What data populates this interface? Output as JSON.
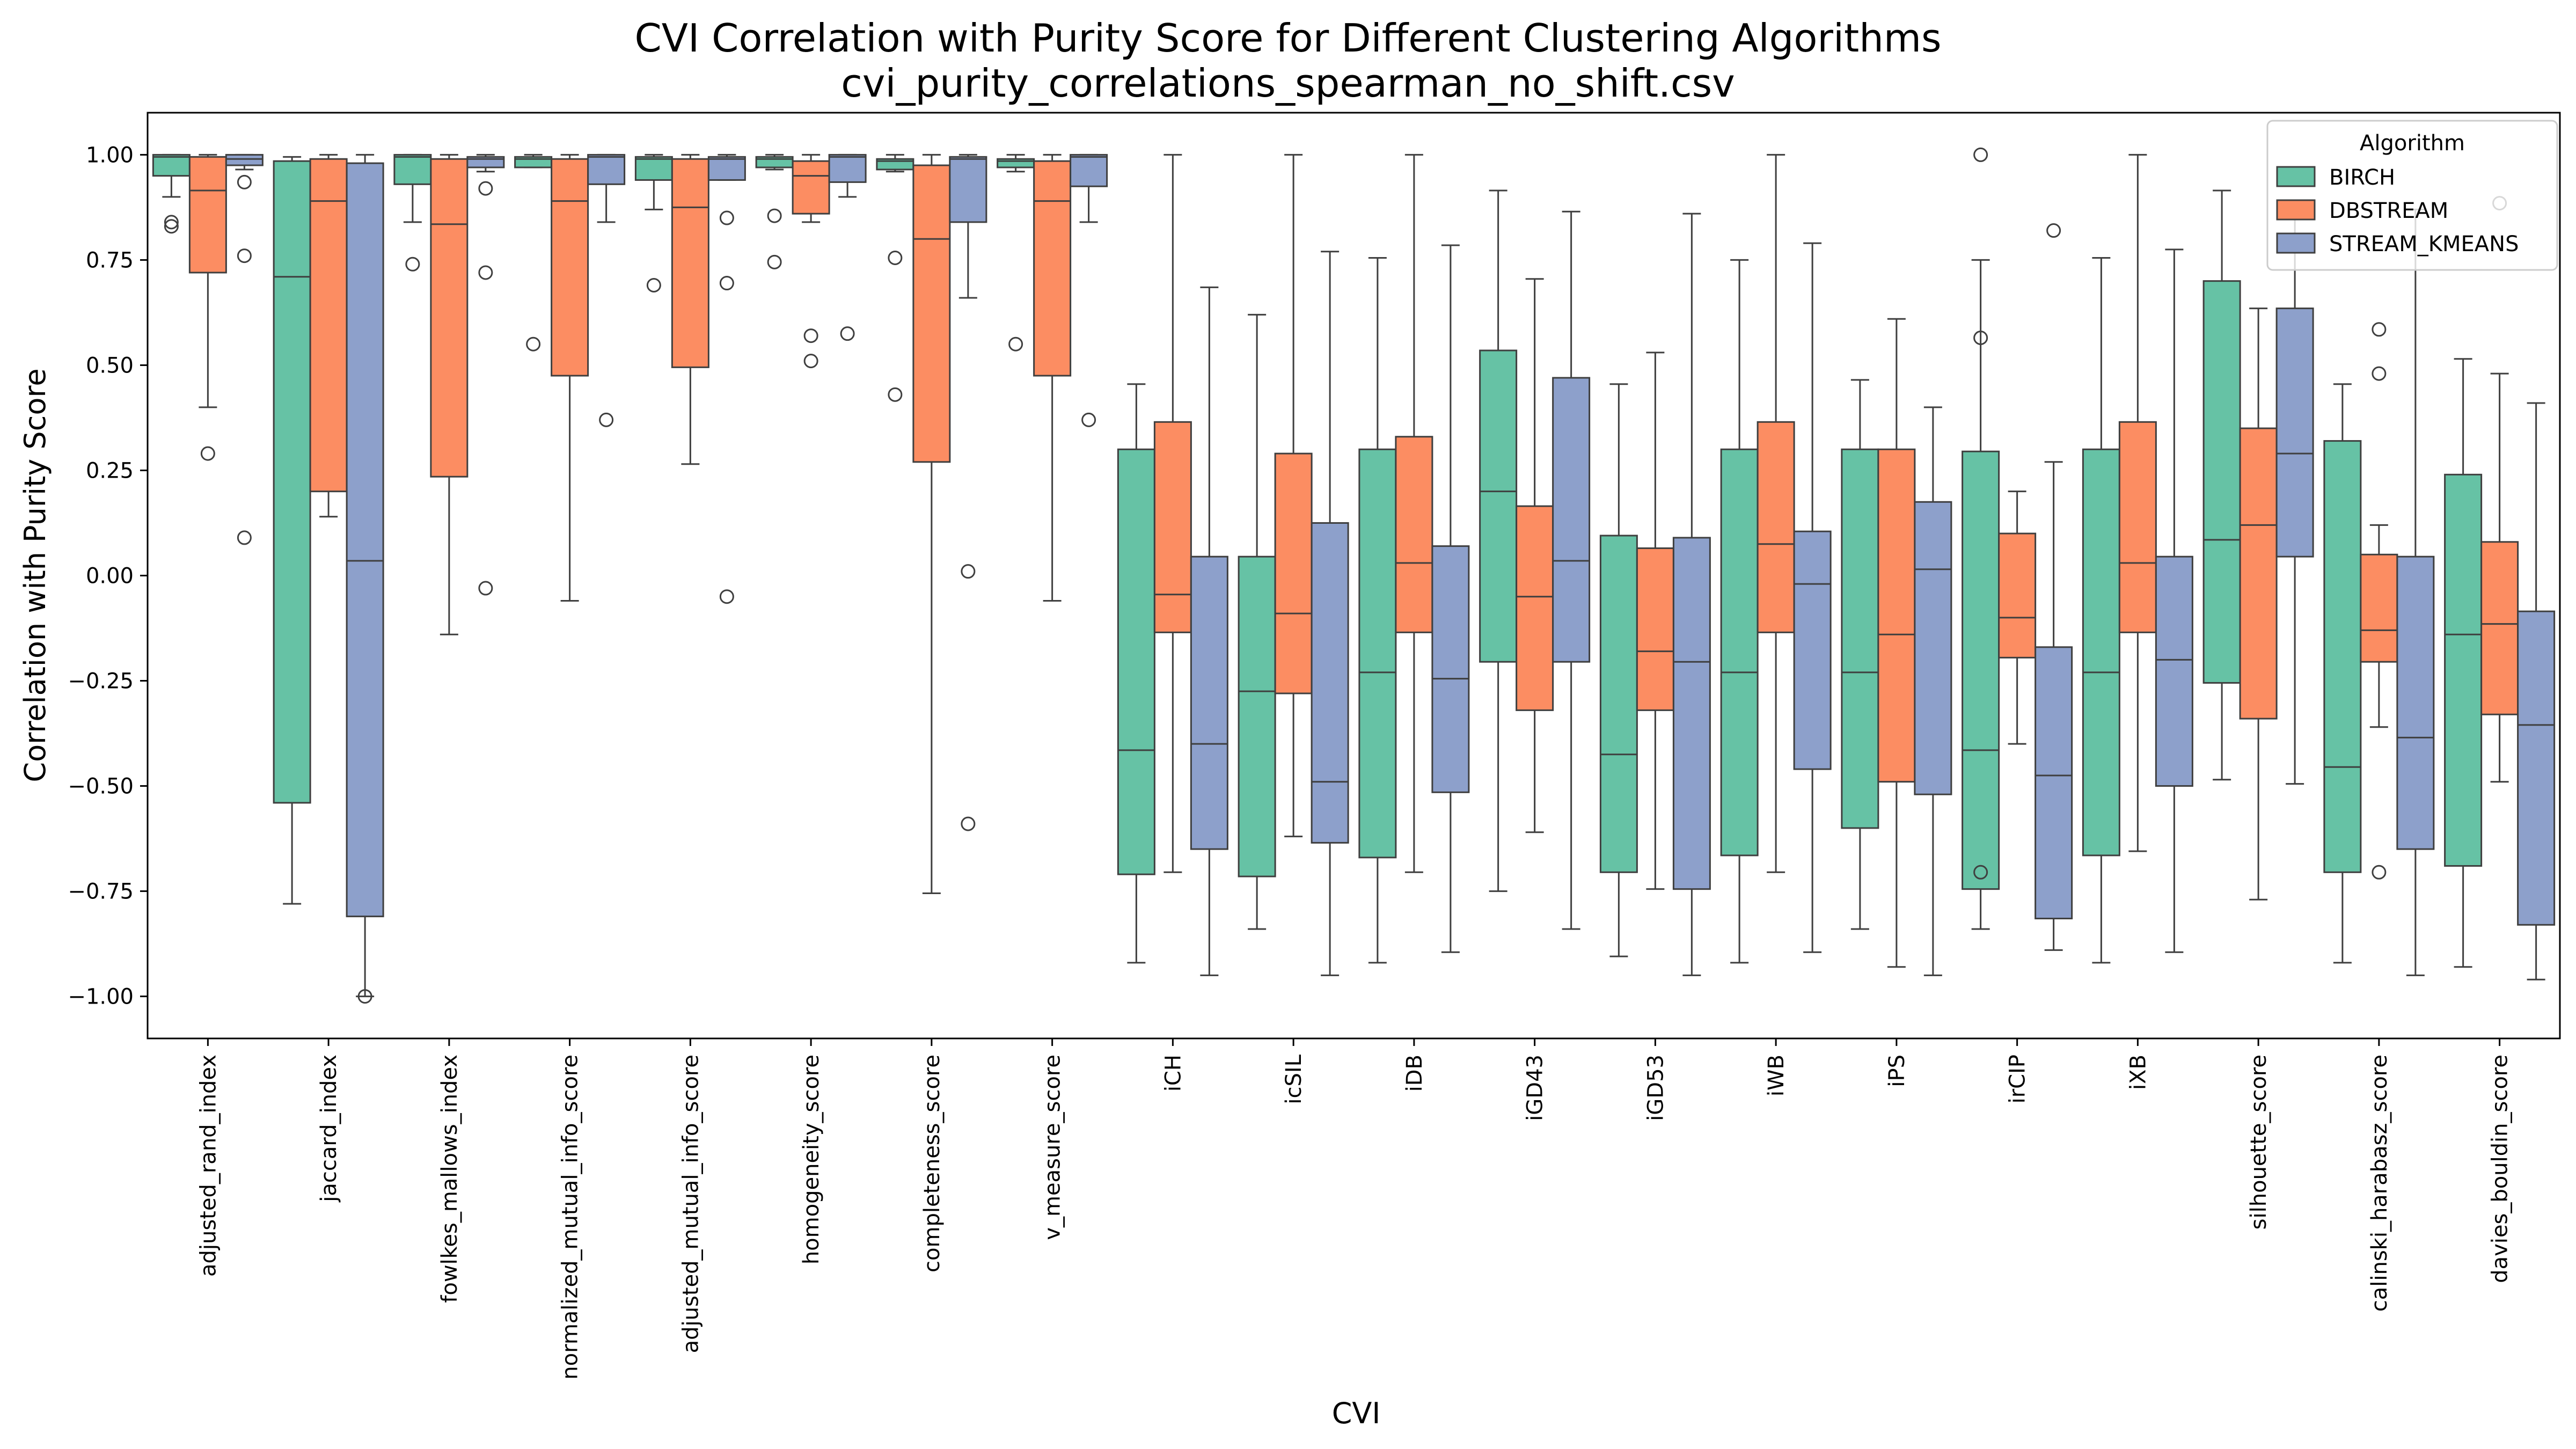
{
  "chart_data": {
    "type": "box",
    "title": "CVI Correlation with Purity Score for Different Clustering Algorithms",
    "subtitle": "cvi_purity_correlations_spearman_no_shift.csv",
    "xlabel": "CVI",
    "ylabel": "Correlation with Purity Score",
    "ylim": [
      -1.1,
      1.1
    ],
    "yticks": [
      1.0,
      0.75,
      0.5,
      0.25,
      0.0,
      -0.25,
      -0.5,
      -0.75,
      -1.0
    ],
    "ytick_labels": [
      "1.00",
      "0.75",
      "0.50",
      "0.25",
      "0.00",
      "−0.25",
      "−0.50",
      "−0.75",
      "−1.00"
    ],
    "grid": false,
    "legend": {
      "title": "Algorithm",
      "placement": "top-right"
    },
    "categories": [
      "adjusted_rand_index",
      "jaccard_index",
      "fowlkes_mallows_index",
      "normalized_mutual_info_score",
      "adjusted_mutual_info_score",
      "homogeneity_score",
      "completeness_score",
      "v_measure_score",
      "iCH",
      "icSIL",
      "iDB",
      "iGD43",
      "iGD53",
      "iWB",
      "iPS",
      "irCIP",
      "iXB",
      "silhouette_score",
      "calinski_harabasz_score",
      "davies_bouldin_score"
    ],
    "series": [
      {
        "name": "BIRCH",
        "color": "#66c2a5",
        "boxes": [
          {
            "wl": 0.9,
            "q1": 0.95,
            "med": 0.995,
            "q3": 1.0,
            "wh": 1.0,
            "out": [
              0.84,
              0.83
            ]
          },
          {
            "wl": -0.78,
            "q1": -0.54,
            "med": 0.71,
            "q3": 0.985,
            "wh": 0.995,
            "out": []
          },
          {
            "wl": 0.84,
            "q1": 0.93,
            "med": 0.995,
            "q3": 1.0,
            "wh": 1.0,
            "out": [
              0.74
            ]
          },
          {
            "wl": 0.97,
            "q1": 0.97,
            "med": 0.99,
            "q3": 0.995,
            "wh": 1.0,
            "out": [
              0.55
            ]
          },
          {
            "wl": 0.87,
            "q1": 0.94,
            "med": 0.99,
            "q3": 0.995,
            "wh": 1.0,
            "out": [
              0.69
            ]
          },
          {
            "wl": 0.965,
            "q1": 0.97,
            "med": 0.99,
            "q3": 0.995,
            "wh": 1.0,
            "out": [
              0.855,
              0.745
            ]
          },
          {
            "wl": 0.96,
            "q1": 0.965,
            "med": 0.985,
            "q3": 0.99,
            "wh": 1.0,
            "out": [
              0.755,
              0.43
            ]
          },
          {
            "wl": 0.96,
            "q1": 0.97,
            "med": 0.985,
            "q3": 0.99,
            "wh": 1.0,
            "out": [
              0.55
            ]
          },
          {
            "wl": -0.92,
            "q1": -0.71,
            "med": -0.415,
            "q3": 0.3,
            "wh": 0.455,
            "out": []
          },
          {
            "wl": -0.84,
            "q1": -0.715,
            "med": -0.275,
            "q3": 0.045,
            "wh": 0.62,
            "out": []
          },
          {
            "wl": -0.92,
            "q1": -0.67,
            "med": -0.23,
            "q3": 0.3,
            "wh": 0.755,
            "out": []
          },
          {
            "wl": -0.75,
            "q1": -0.205,
            "med": 0.2,
            "q3": 0.535,
            "wh": 0.915,
            "out": []
          },
          {
            "wl": -0.905,
            "q1": -0.705,
            "med": -0.425,
            "q3": 0.095,
            "wh": 0.455,
            "out": []
          },
          {
            "wl": -0.92,
            "q1": -0.665,
            "med": -0.23,
            "q3": 0.3,
            "wh": 0.75,
            "out": []
          },
          {
            "wl": -0.84,
            "q1": -0.6,
            "med": -0.23,
            "q3": 0.3,
            "wh": 0.465,
            "out": []
          },
          {
            "wl": -0.84,
            "q1": -0.745,
            "med": -0.415,
            "q3": 0.295,
            "wh": 0.75,
            "out": [
              1.0,
              0.565,
              -0.705
            ]
          },
          {
            "wl": -0.92,
            "q1": -0.665,
            "med": -0.23,
            "q3": 0.3,
            "wh": 0.755,
            "out": []
          },
          {
            "wl": -0.485,
            "q1": -0.255,
            "med": 0.085,
            "q3": 0.7,
            "wh": 0.915,
            "out": []
          },
          {
            "wl": -0.92,
            "q1": -0.705,
            "med": -0.455,
            "q3": 0.32,
            "wh": 0.455,
            "out": []
          },
          {
            "wl": -0.93,
            "q1": -0.69,
            "med": -0.14,
            "q3": 0.24,
            "wh": 0.515,
            "out": []
          }
        ]
      },
      {
        "name": "DBSTREAM",
        "color": "#fc8d62",
        "boxes": [
          {
            "wl": 0.4,
            "q1": 0.72,
            "med": 0.915,
            "q3": 0.995,
            "wh": 1.0,
            "out": [
              0.29
            ]
          },
          {
            "wl": 0.14,
            "q1": 0.2,
            "med": 0.89,
            "q3": 0.99,
            "wh": 1.0,
            "out": []
          },
          {
            "wl": -0.14,
            "q1": 0.235,
            "med": 0.835,
            "q3": 0.99,
            "wh": 1.0,
            "out": []
          },
          {
            "wl": -0.06,
            "q1": 0.475,
            "med": 0.89,
            "q3": 0.99,
            "wh": 1.0,
            "out": []
          },
          {
            "wl": 0.265,
            "q1": 0.495,
            "med": 0.875,
            "q3": 0.99,
            "wh": 1.0,
            "out": []
          },
          {
            "wl": 0.84,
            "q1": 0.86,
            "med": 0.95,
            "q3": 0.985,
            "wh": 1.0,
            "out": [
              0.57,
              0.51
            ]
          },
          {
            "wl": -0.755,
            "q1": 0.27,
            "med": 0.8,
            "q3": 0.975,
            "wh": 1.0,
            "out": []
          },
          {
            "wl": -0.06,
            "q1": 0.475,
            "med": 0.89,
            "q3": 0.985,
            "wh": 1.0,
            "out": []
          },
          {
            "wl": -0.705,
            "q1": -0.135,
            "med": -0.045,
            "q3": 0.365,
            "wh": 1.0,
            "out": []
          },
          {
            "wl": -0.62,
            "q1": -0.28,
            "med": -0.09,
            "q3": 0.29,
            "wh": 1.0,
            "out": []
          },
          {
            "wl": -0.705,
            "q1": -0.135,
            "med": 0.03,
            "q3": 0.33,
            "wh": 1.0,
            "out": []
          },
          {
            "wl": -0.61,
            "q1": -0.32,
            "med": -0.05,
            "q3": 0.165,
            "wh": 0.705,
            "out": []
          },
          {
            "wl": -0.745,
            "q1": -0.32,
            "med": -0.18,
            "q3": 0.065,
            "wh": 0.53,
            "out": []
          },
          {
            "wl": -0.705,
            "q1": -0.135,
            "med": 0.075,
            "q3": 0.365,
            "wh": 1.0,
            "out": []
          },
          {
            "wl": -0.93,
            "q1": -0.49,
            "med": -0.14,
            "q3": 0.3,
            "wh": 0.61,
            "out": []
          },
          {
            "wl": -0.4,
            "q1": -0.195,
            "med": -0.1,
            "q3": 0.1,
            "wh": 0.2,
            "out": []
          },
          {
            "wl": -0.655,
            "q1": -0.135,
            "med": 0.03,
            "q3": 0.365,
            "wh": 1.0,
            "out": []
          },
          {
            "wl": -0.77,
            "q1": -0.34,
            "med": 0.12,
            "q3": 0.35,
            "wh": 0.635,
            "out": []
          },
          {
            "wl": -0.36,
            "q1": -0.205,
            "med": -0.13,
            "q3": 0.05,
            "wh": 0.12,
            "out": [
              0.585,
              0.48,
              -0.705
            ]
          },
          {
            "wl": -0.49,
            "q1": -0.33,
            "med": -0.115,
            "q3": 0.08,
            "wh": 0.48,
            "out": [
              0.885
            ]
          }
        ]
      },
      {
        "name": "STREAM_KMEANS",
        "color": "#8da0cb",
        "boxes": [
          {
            "wl": 0.965,
            "q1": 0.975,
            "med": 0.99,
            "q3": 1.0,
            "wh": 1.0,
            "out": [
              0.935,
              0.76,
              0.09
            ]
          },
          {
            "wl": -1.0,
            "q1": -0.81,
            "med": 0.035,
            "q3": 0.98,
            "wh": 1.0,
            "out": [
              -1.0
            ]
          },
          {
            "wl": 0.96,
            "q1": 0.97,
            "med": 0.99,
            "q3": 0.995,
            "wh": 1.0,
            "out": [
              0.92,
              0.72,
              -0.03
            ]
          },
          {
            "wl": 0.84,
            "q1": 0.93,
            "med": 0.995,
            "q3": 1.0,
            "wh": 1.0,
            "out": [
              0.37
            ]
          },
          {
            "wl": 0.94,
            "q1": 0.94,
            "med": 0.99,
            "q3": 0.995,
            "wh": 1.0,
            "out": [
              0.85,
              0.695,
              -0.05
            ]
          },
          {
            "wl": 0.9,
            "q1": 0.935,
            "med": 0.995,
            "q3": 1.0,
            "wh": 1.0,
            "out": [
              0.575
            ]
          },
          {
            "wl": 0.66,
            "q1": 0.84,
            "med": 0.99,
            "q3": 0.995,
            "wh": 1.0,
            "out": [
              0.01,
              -0.59
            ]
          },
          {
            "wl": 0.84,
            "q1": 0.925,
            "med": 0.995,
            "q3": 1.0,
            "wh": 1.0,
            "out": [
              0.37
            ]
          },
          {
            "wl": -0.95,
            "q1": -0.65,
            "med": -0.4,
            "q3": 0.045,
            "wh": 0.685,
            "out": []
          },
          {
            "wl": -0.95,
            "q1": -0.635,
            "med": -0.49,
            "q3": 0.125,
            "wh": 0.77,
            "out": []
          },
          {
            "wl": -0.895,
            "q1": -0.515,
            "med": -0.245,
            "q3": 0.07,
            "wh": 0.785,
            "out": []
          },
          {
            "wl": -0.84,
            "q1": -0.205,
            "med": 0.035,
            "q3": 0.47,
            "wh": 0.865,
            "out": []
          },
          {
            "wl": -0.95,
            "q1": -0.745,
            "med": -0.205,
            "q3": 0.09,
            "wh": 0.86,
            "out": []
          },
          {
            "wl": -0.895,
            "q1": -0.46,
            "med": -0.02,
            "q3": 0.105,
            "wh": 0.79,
            "out": []
          },
          {
            "wl": -0.95,
            "q1": -0.52,
            "med": 0.015,
            "q3": 0.175,
            "wh": 0.4,
            "out": []
          },
          {
            "wl": -0.89,
            "q1": -0.815,
            "med": -0.475,
            "q3": -0.17,
            "wh": 0.27,
            "out": [
              0.82
            ]
          },
          {
            "wl": -0.895,
            "q1": -0.5,
            "med": -0.2,
            "q3": 0.045,
            "wh": 0.775,
            "out": []
          },
          {
            "wl": -0.495,
            "q1": 0.045,
            "med": 0.29,
            "q3": 0.635,
            "wh": 0.87,
            "out": []
          },
          {
            "wl": -0.95,
            "q1": -0.65,
            "med": -0.385,
            "q3": 0.045,
            "wh": 0.87,
            "out": []
          },
          {
            "wl": -0.96,
            "q1": -0.83,
            "med": -0.355,
            "q3": -0.085,
            "wh": 0.41,
            "out": []
          }
        ]
      }
    ]
  }
}
